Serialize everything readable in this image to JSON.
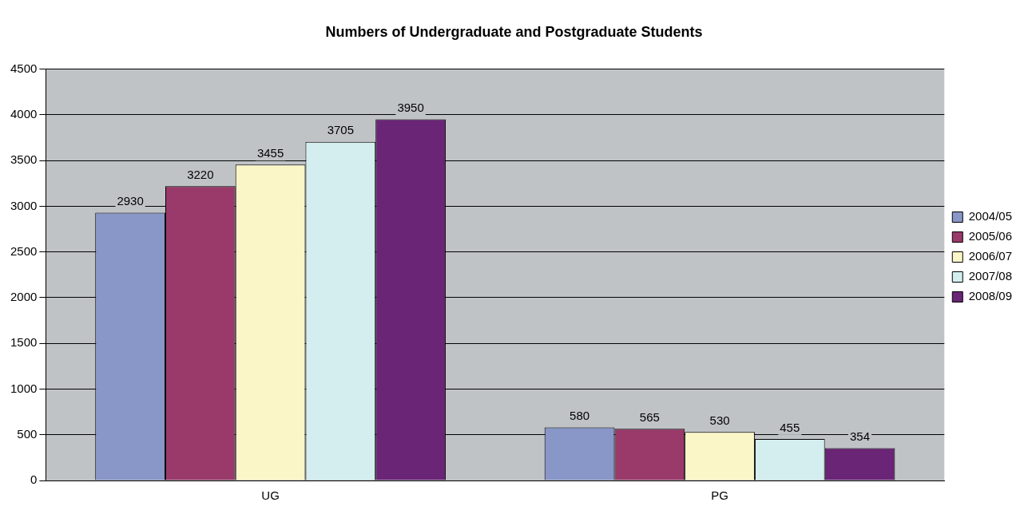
{
  "chart_data": {
    "type": "bar",
    "title": "Numbers of Undergraduate and Postgraduate Students",
    "categories": [
      "UG",
      "PG"
    ],
    "series": [
      {
        "name": "2004/05",
        "color": "#8896c8",
        "values": [
          2930,
          580
        ]
      },
      {
        "name": "2005/06",
        "color": "#993a6a",
        "values": [
          3220,
          565
        ]
      },
      {
        "name": "2006/07",
        "color": "#fbf6c8",
        "values": [
          3455,
          530
        ]
      },
      {
        "name": "2007/08",
        "color": "#d4eef0",
        "values": [
          3705,
          455
        ]
      },
      {
        "name": "2008/09",
        "color": "#6a2576",
        "values": [
          3950,
          354
        ]
      }
    ],
    "ylim": [
      0,
      4500
    ],
    "yticks": [
      0,
      500,
      1000,
      1500,
      2000,
      2500,
      3000,
      3500,
      4000,
      4500
    ],
    "grid": "y",
    "legend": "right",
    "data_labels": true
  }
}
